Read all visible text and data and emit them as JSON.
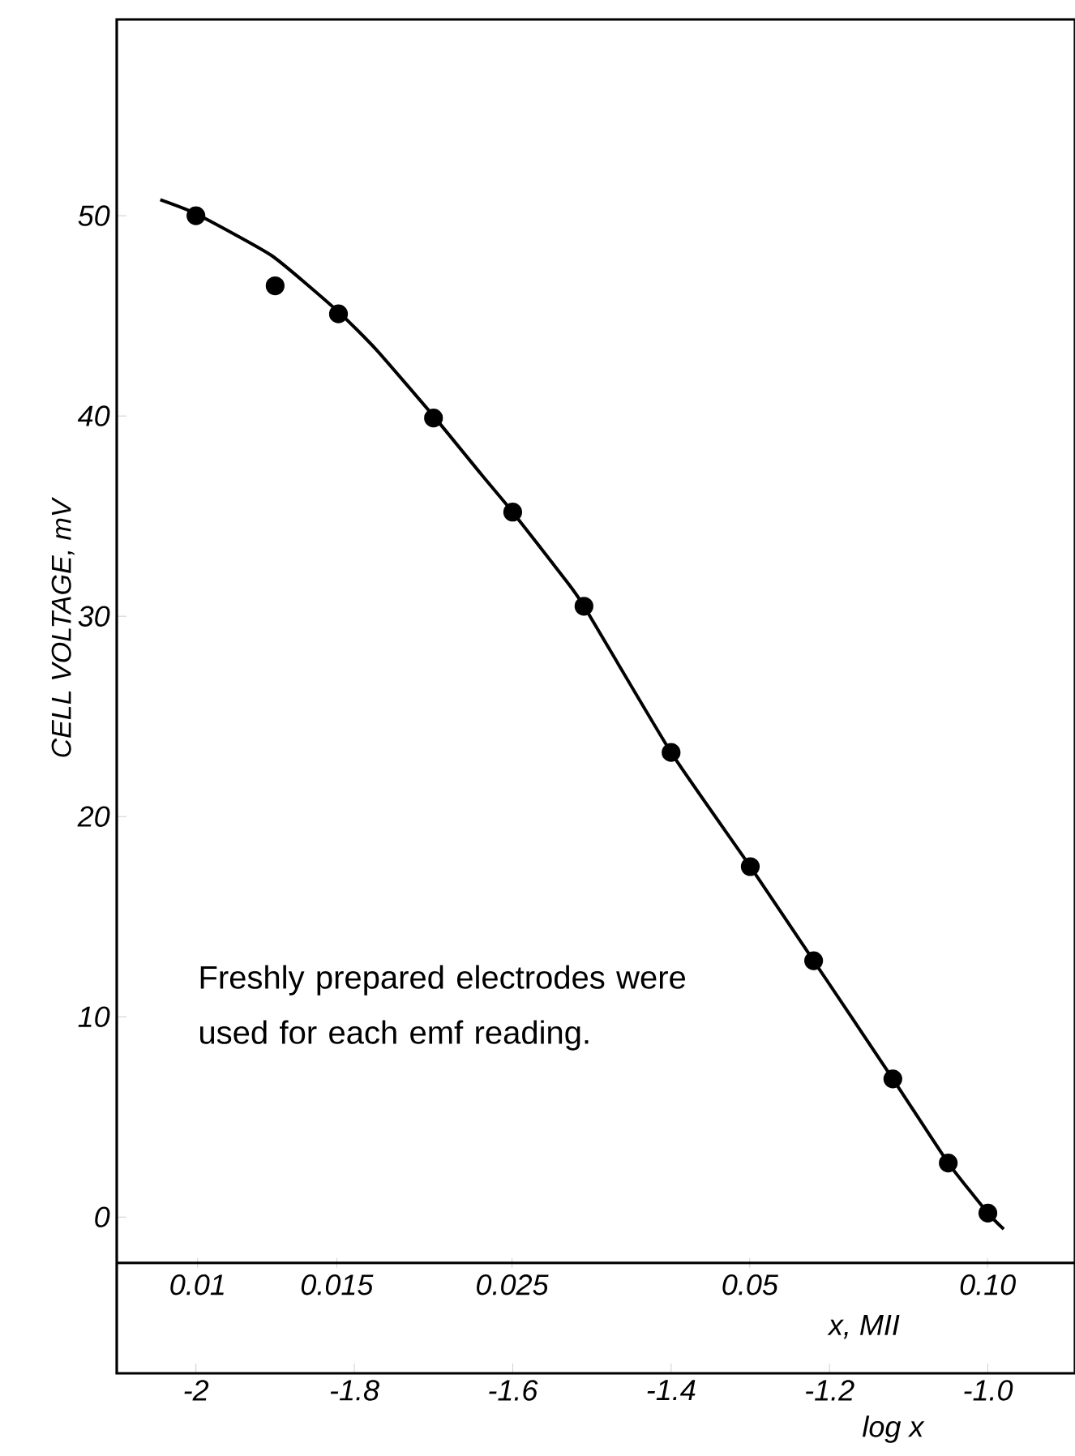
{
  "chart_data": {
    "type": "scatter",
    "xlabel": "log x",
    "ylabel": "CELL VOLTAGE, mV",
    "x2label": "x, MII",
    "annotations": [
      "Freshly prepared electrodes were used for each emf reading."
    ],
    "series": [
      {
        "color": "#000000",
        "x": [
          -2.0,
          -1.9,
          -1.82,
          -1.7,
          -1.6,
          -1.51,
          -1.4,
          -1.3,
          -1.22,
          -1.12,
          -1.05,
          -1.0
        ],
        "values": [
          50.0,
          46.5,
          45.1,
          39.9,
          35.2,
          30.5,
          23.2,
          17.5,
          12.8,
          6.9,
          2.7,
          0.2
        ]
      },
      {
        "type": "line",
        "color": "#000000",
        "x": [
          -2.045,
          -2.0,
          -1.904,
          -1.82,
          -1.772,
          -1.7,
          -1.64,
          -1.6,
          -1.537,
          -1.51,
          -1.4,
          -1.3,
          -1.22,
          -1.12,
          -1.05,
          -1.0,
          -0.98
        ],
        "values": [
          50.8,
          50.1,
          48.0,
          45.2,
          43.3,
          40.0,
          37.1,
          35.2,
          32.0,
          30.5,
          23.2,
          17.5,
          12.8,
          6.9,
          2.7,
          0.2,
          -0.6
        ]
      }
    ],
    "xlim": [
      -2.1,
      -0.89
    ],
    "ylim": [
      -7.8,
      59.8
    ],
    "xticks": [
      -2,
      -1.8,
      -1.6,
      -1.4,
      -1.2,
      {
        "value": -1,
        "label": "-1.0"
      }
    ],
    "yticks": [
      0,
      10,
      20,
      30,
      40,
      50
    ],
    "x2lim": [
      0.0079,
      0.129
    ],
    "log": "x2",
    "x2ticks": [
      0.01,
      0.015,
      0.025,
      0.05,
      {
        "value": 0.1,
        "label": "0.10"
      }
    ],
    "grid": false
  }
}
